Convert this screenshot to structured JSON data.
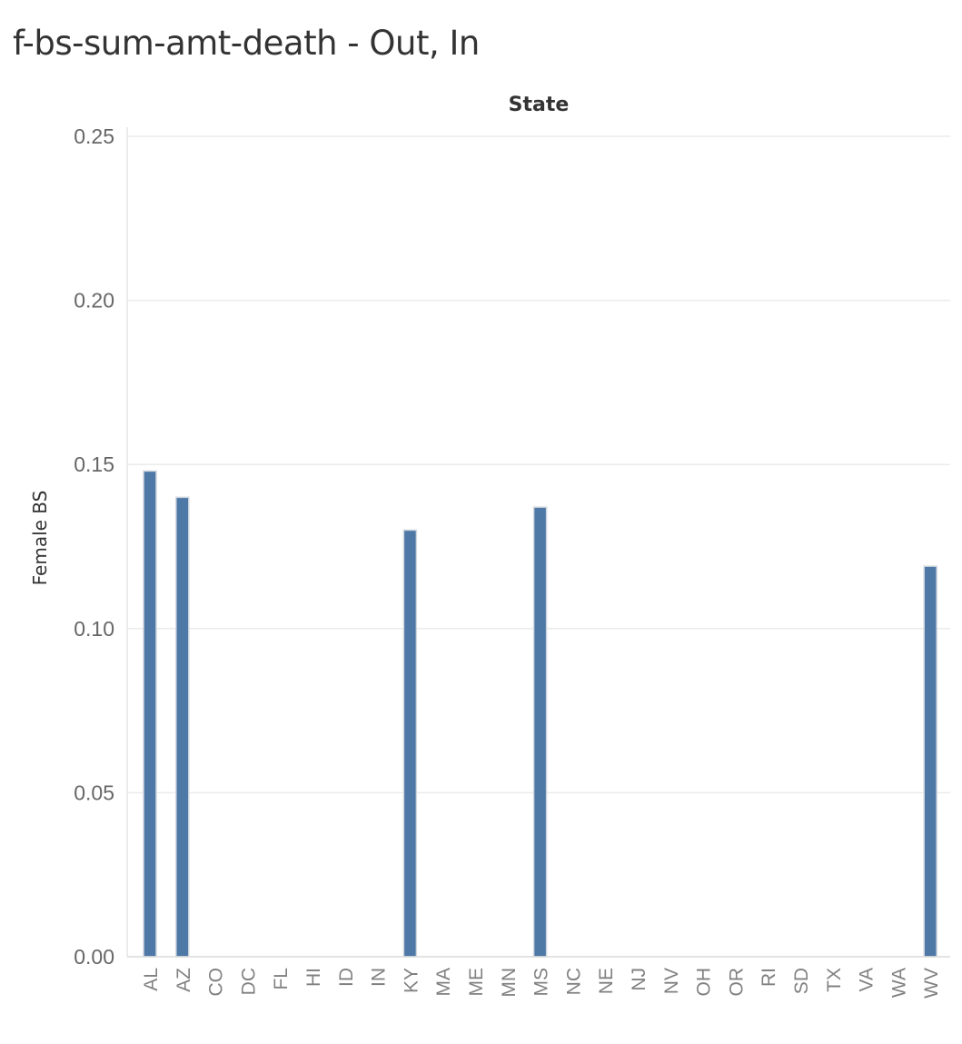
{
  "title": "f-bs-sum-amt-death - Out, In",
  "chart_data": {
    "type": "bar",
    "column_header": "State",
    "ylabel": "Female BS",
    "xlabel": "",
    "ylim": [
      0,
      0.25
    ],
    "yticks": [
      "0.00",
      "0.05",
      "0.10",
      "0.15",
      "0.20",
      "0.25"
    ],
    "grid": true,
    "bar_color": "#4e79a7",
    "categories": [
      "AL",
      "AZ",
      "CO",
      "DC",
      "FL",
      "HI",
      "ID",
      "IN",
      "KY",
      "MA",
      "ME",
      "MN",
      "MS",
      "NC",
      "NE",
      "NJ",
      "NV",
      "OH",
      "OR",
      "RI",
      "SD",
      "TX",
      "VA",
      "WA",
      "WV"
    ],
    "values": [
      0.148,
      0.14,
      0,
      0,
      0,
      0,
      0,
      0,
      0.13,
      0,
      0,
      0,
      0.137,
      0,
      0,
      0,
      0,
      0,
      0,
      0,
      0,
      0,
      0,
      0,
      0.119
    ]
  }
}
